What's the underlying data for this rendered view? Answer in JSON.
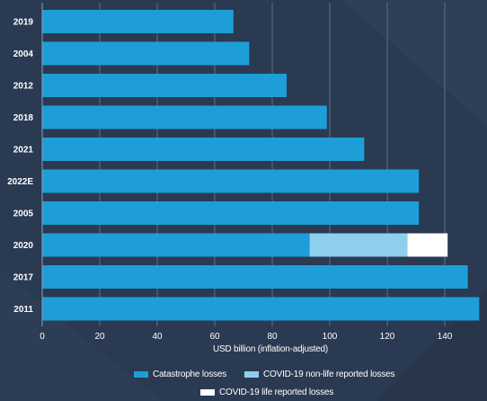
{
  "chart_data": {
    "type": "bar",
    "orientation": "horizontal",
    "stacked": true,
    "categories": [
      "2019",
      "2004",
      "2012",
      "2018",
      "2021",
      "2022E",
      "2005",
      "2020",
      "2017",
      "2011"
    ],
    "series": [
      {
        "name": "Catastrophe losses",
        "values": [
          66.5,
          72,
          85,
          99,
          112,
          131,
          131,
          93,
          148,
          152
        ],
        "color": "#1e9ed8"
      },
      {
        "name": "COVID-19 non-life reported losses",
        "values": [
          0,
          0,
          0,
          0,
          0,
          0,
          0,
          34,
          0,
          0
        ],
        "color": "#8ecfee"
      },
      {
        "name": "COVID-19 life reported losses",
        "values": [
          0,
          0,
          0,
          0,
          0,
          0,
          0,
          14,
          0,
          0
        ],
        "color": "#ffffff"
      }
    ],
    "xlabel": "USD billion (inflation-adjusted)",
    "xticks": [
      0,
      20,
      40,
      60,
      80,
      100,
      120,
      140
    ],
    "xlim": [
      0,
      152
    ],
    "grid": "vertical",
    "legend": "bottom"
  }
}
